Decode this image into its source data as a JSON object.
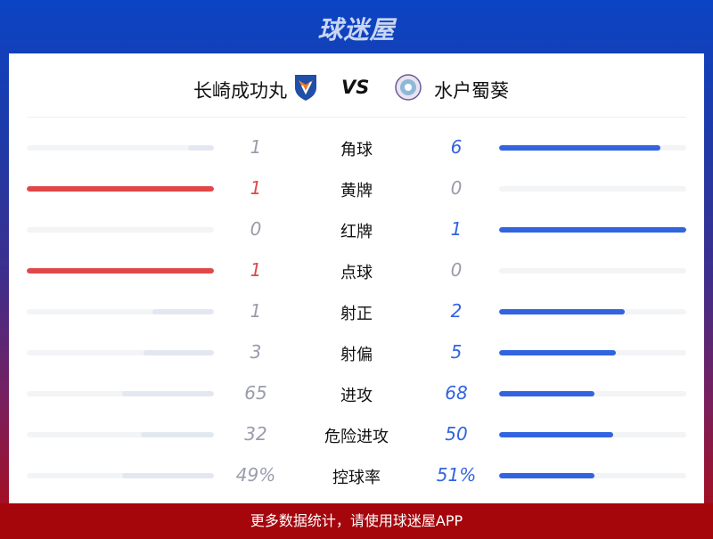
{
  "brand": "球迷屋",
  "match": {
    "home": "长崎成功丸",
    "vs": "VS",
    "away": "水户蜀葵"
  },
  "colors": {
    "home_lead": "#e04848",
    "away_lead": "#3264e0",
    "loser_fill": "#e3e8f0",
    "track": "#f3f4f6",
    "muted": "#9a9cab"
  },
  "stats": [
    {
      "label": "角球",
      "home": "1",
      "away": "6",
      "home_frac": 0.14,
      "away_frac": 0.86,
      "home_lead": false,
      "away_lead": true
    },
    {
      "label": "黄牌",
      "home": "1",
      "away": "0",
      "home_frac": 1,
      "away_frac": 0,
      "home_lead": true,
      "away_lead": false
    },
    {
      "label": "红牌",
      "home": "0",
      "away": "1",
      "home_frac": 0,
      "away_frac": 1,
      "home_lead": false,
      "away_lead": true
    },
    {
      "label": "点球",
      "home": "1",
      "away": "0",
      "home_frac": 1,
      "away_frac": 0,
      "home_lead": true,
      "away_lead": false
    },
    {
      "label": "射正",
      "home": "1",
      "away": "2",
      "home_frac": 0.33,
      "away_frac": 0.67,
      "home_lead": false,
      "away_lead": true
    },
    {
      "label": "射偏",
      "home": "3",
      "away": "5",
      "home_frac": 0.375,
      "away_frac": 0.625,
      "home_lead": false,
      "away_lead": true
    },
    {
      "label": "进攻",
      "home": "65",
      "away": "68",
      "home_frac": 0.49,
      "away_frac": 0.51,
      "home_lead": false,
      "away_lead": true
    },
    {
      "label": "危险进攻",
      "home": "32",
      "away": "50",
      "home_frac": 0.39,
      "away_frac": 0.61,
      "home_lead": false,
      "away_lead": true
    },
    {
      "label": "控球率",
      "home": "49%",
      "away": "51%",
      "home_frac": 0.49,
      "away_frac": 0.51,
      "home_lead": false,
      "away_lead": true
    }
  ],
  "footer": "更多数据统计，请使用球迷屋APP"
}
